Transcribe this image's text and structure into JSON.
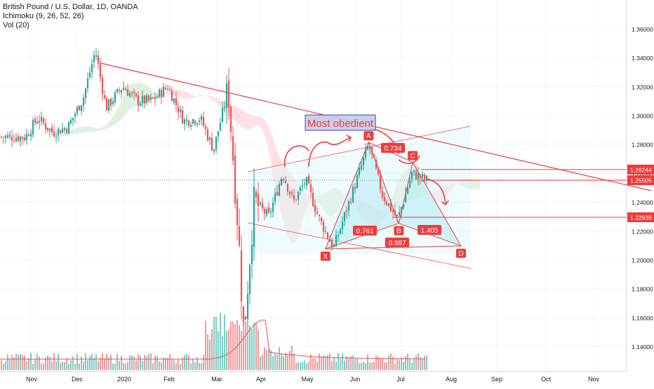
{
  "header": {
    "title": "British Pound / U.S. Dollar, 1D, OANDA",
    "indicator_1": "Ichimoku (9, 26, 52, 26)",
    "indicator_2": "Vol (20)"
  },
  "annotation_text": "Most obedient",
  "colors": {
    "up": "#26a69a",
    "down": "#ef5350",
    "drawing": "#ef3b3b",
    "pattern_fill": "#b2ebf2",
    "channel_fill": "#e0f7fa",
    "cloud_green": "#c8e6c9",
    "cloud_red": "#ffcdd2",
    "label_box": "#c5cae9"
  },
  "chart_data": {
    "type": "candlestick",
    "title": "British Pound / U.S. Dollar, 1D, OANDA",
    "x_ticks": [
      "Nov",
      "Dec",
      "2020",
      "Feb",
      "Mar",
      "Apr",
      "May",
      "Jun",
      "Jul",
      "Aug",
      "Sep",
      "Oct",
      "Nov"
    ],
    "y_ticks": [
      "1.36000",
      "1.34000",
      "1.32000",
      "1.30000",
      "1.28000",
      "1.26000",
      "1.24000",
      "1.22000",
      "1.20000",
      "1.18000",
      "1.16000",
      "1.14000"
    ],
    "ylim": [
      1.125,
      1.375
    ],
    "price_labels": [
      {
        "text": "1.26244",
        "value": 1.26244,
        "color": "#ef3b3b"
      },
      {
        "text": "1.25505",
        "value": 1.25505,
        "color": "#ef3b3b"
      },
      {
        "text": "1.22938",
        "value": 1.22938,
        "color": "#ef3b3b"
      }
    ],
    "harmonic_points": [
      {
        "label": "X",
        "month": "May",
        "day_offset": 12,
        "price": 1.2075
      },
      {
        "label": "A",
        "month": "Jun",
        "day_offset": 9,
        "price": 1.2812
      },
      {
        "label": "B",
        "month": "Jun",
        "day_offset": 29,
        "price": 1.2252
      },
      {
        "label": "C",
        "month": "Jul",
        "day_offset": 8,
        "price": 1.2675
      },
      {
        "label": "D",
        "month": "Jul",
        "day_offset": 40,
        "price": 1.2095
      }
    ],
    "ratios": [
      "0.734",
      "0.761",
      "0.987",
      "1.405"
    ],
    "series": [
      {
        "name": "GBPUSD",
        "anchors": [
          [
            1.285,
            "2019-10-28"
          ],
          [
            1.298,
            "2019-11-05"
          ],
          [
            1.288,
            "2019-11-15"
          ],
          [
            1.292,
            "2019-11-25"
          ],
          [
            1.312,
            "2019-12-05"
          ],
          [
            1.345,
            "2019-12-13"
          ],
          [
            1.305,
            "2019-12-20"
          ],
          [
            1.32,
            "2019-12-31"
          ],
          [
            1.31,
            "2020-01-10"
          ],
          [
            1.31,
            "2020-01-20"
          ],
          [
            1.32,
            "2020-01-31"
          ],
          [
            1.296,
            "2020-02-10"
          ],
          [
            1.298,
            "2020-02-20"
          ],
          [
            1.276,
            "2020-02-28"
          ],
          [
            1.318,
            "2020-03-09"
          ],
          [
            1.22,
            "2020-03-16"
          ],
          [
            1.148,
            "2020-03-20"
          ],
          [
            1.24,
            "2020-03-27"
          ],
          [
            1.23,
            "2020-04-06"
          ],
          [
            1.26,
            "2020-04-15"
          ],
          [
            1.24,
            "2020-04-22"
          ],
          [
            1.255,
            "2020-04-30"
          ],
          [
            1.23,
            "2020-05-08"
          ],
          [
            1.208,
            "2020-05-18"
          ],
          [
            1.23,
            "2020-05-25"
          ],
          [
            1.252,
            "2020-06-01"
          ],
          [
            1.28,
            "2020-06-10"
          ],
          [
            1.245,
            "2020-06-19"
          ],
          [
            1.228,
            "2020-06-29"
          ],
          [
            1.26,
            "2020-07-08"
          ],
          [
            1.255,
            "2020-07-17"
          ]
        ]
      }
    ]
  }
}
